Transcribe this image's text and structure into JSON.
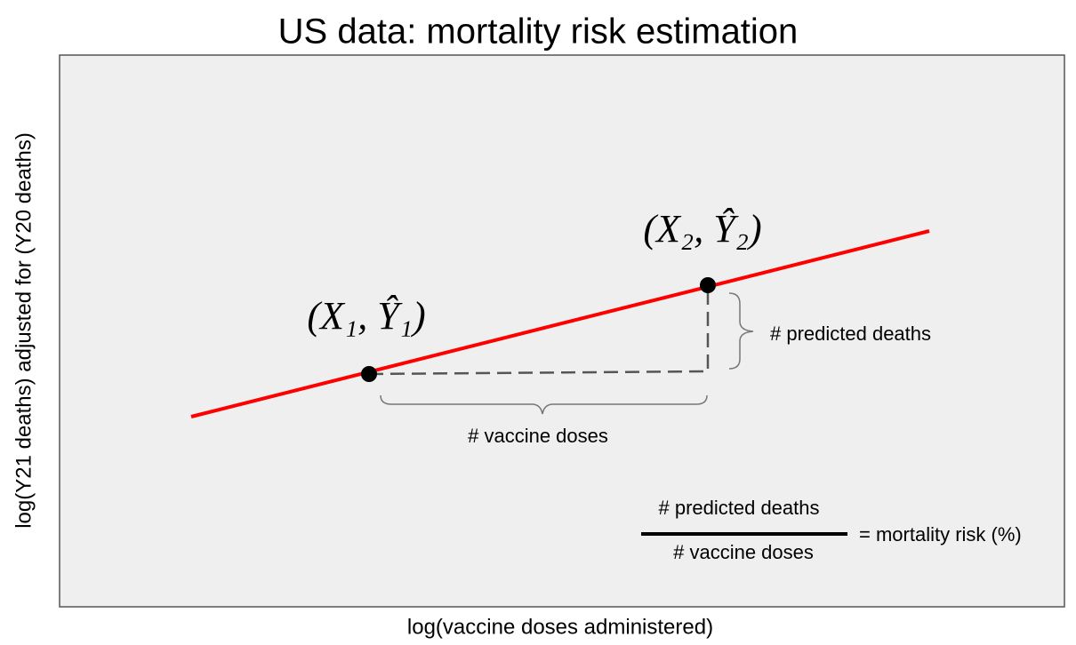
{
  "title": "US data: mortality risk estimation",
  "x_axis_label": "log(vaccine doses administered)",
  "y_axis_label": "log(Y21 deaths) adjusted for (Y20 deaths)",
  "points": [
    {
      "label": "(X₁, Ŷ₁)"
    },
    {
      "label": "(X₂, Ŷ₂)"
    }
  ],
  "annotations": {
    "horizontal": "# vaccine doses",
    "vertical": "# predicted deaths"
  },
  "formula": {
    "numerator": "# predicted deaths",
    "denominator": "# vaccine doses",
    "result": "= mortality risk (%)"
  }
}
